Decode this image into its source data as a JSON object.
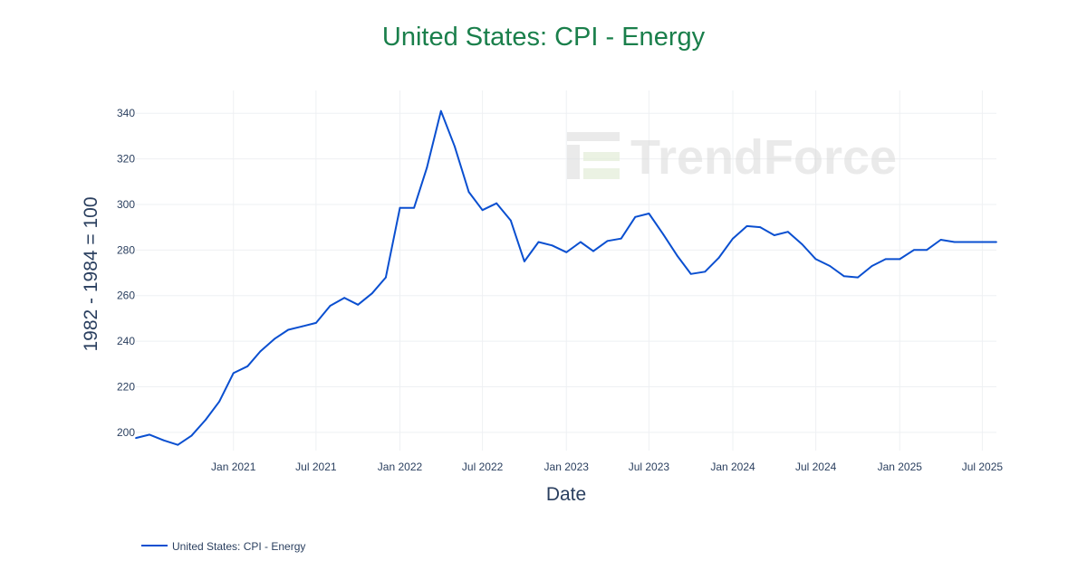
{
  "chart_data": {
    "type": "line",
    "title": "United States: CPI - Energy",
    "xlabel": "Date",
    "ylabel": "1982 - 1984 = 100",
    "ylim": [
      192,
      350
    ],
    "yticks": [
      200,
      220,
      240,
      260,
      280,
      300,
      320,
      340
    ],
    "xticks": [
      {
        "date": "2021-01-01",
        "label": "Jan 2021"
      },
      {
        "date": "2021-07-01",
        "label": "Jul 2021"
      },
      {
        "date": "2022-01-01",
        "label": "Jan 2022"
      },
      {
        "date": "2022-07-01",
        "label": "Jul 2022"
      },
      {
        "date": "2023-01-01",
        "label": "Jan 2023"
      },
      {
        "date": "2023-07-01",
        "label": "Jul 2023"
      },
      {
        "date": "2024-01-01",
        "label": "Jan 2024"
      },
      {
        "date": "2024-07-01",
        "label": "Jul 2024"
      },
      {
        "date": "2025-01-01",
        "label": "Jan 2025"
      },
      {
        "date": "2025-07-01",
        "label": "Jul 2025"
      }
    ],
    "xrange": [
      "2020-06-01",
      "2025-08-01"
    ],
    "grid": true,
    "legend_position": "bottom-left",
    "series": [
      {
        "name": "United States: CPI - Energy",
        "color": "#0a4fd0",
        "x": [
          "2020-06",
          "2020-07",
          "2020-08",
          "2020-09",
          "2020-10",
          "2020-11",
          "2020-12",
          "2021-01",
          "2021-02",
          "2021-03",
          "2021-04",
          "2021-05",
          "2021-06",
          "2021-07",
          "2021-08",
          "2021-09",
          "2021-10",
          "2021-11",
          "2021-12",
          "2022-01",
          "2022-02",
          "2022-03",
          "2022-04",
          "2022-05",
          "2022-06",
          "2022-07",
          "2022-08",
          "2022-09",
          "2022-10",
          "2022-11",
          "2022-12",
          "2023-01",
          "2023-02",
          "2023-03",
          "2023-04",
          "2023-05",
          "2023-06",
          "2023-07",
          "2023-08",
          "2023-09",
          "2023-10",
          "2023-11",
          "2023-12",
          "2024-01",
          "2024-02",
          "2024-03",
          "2024-04",
          "2024-05",
          "2024-06",
          "2024-07",
          "2024-08",
          "2024-09",
          "2024-10",
          "2024-11",
          "2024-12",
          "2025-01",
          "2025-02",
          "2025-03",
          "2025-04",
          "2025-05",
          "2025-06",
          "2025-07",
          "2025-08"
        ],
        "y": [
          197.5,
          199.0,
          196.5,
          194.5,
          198.5,
          205.5,
          213.5,
          226.0,
          229.0,
          235.5,
          241.0,
          245.0,
          246.5,
          248.0,
          255.5,
          259.0,
          256.0,
          261.0,
          268.0,
          298.5,
          298.5,
          316.0,
          341.0,
          325.5,
          305.5,
          297.5,
          300.5,
          293.0,
          275.0,
          283.5,
          282.0,
          279.0,
          283.5,
          279.5,
          284.0,
          285.0,
          294.5,
          296.0,
          287.0,
          277.5,
          269.5,
          270.5,
          276.5,
          285.0,
          290.5,
          290.0,
          286.5,
          288.0,
          282.5,
          276.0,
          273.0,
          268.5,
          268.0,
          273.0,
          276.0,
          276.0,
          280.0,
          280.0,
          284.5,
          283.5,
          283.5,
          283.5,
          283.5
        ]
      }
    ]
  },
  "watermark": {
    "text": "TrendForce",
    "color": "#d9d9d9"
  }
}
